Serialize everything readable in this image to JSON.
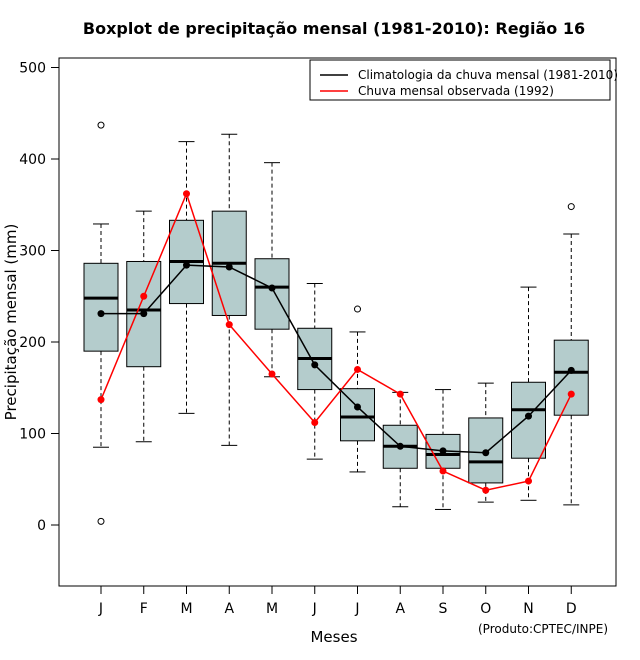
{
  "chart_data": {
    "type": "boxplot",
    "title": "Boxplot de precipitação mensal (1981-2010): Região 16",
    "xlabel": "Meses",
    "ylabel": "Precipitação mensal (mm)",
    "ylim": [
      -65,
      510
    ],
    "yticks": [
      0,
      100,
      200,
      300,
      400,
      500
    ],
    "categories": [
      "J",
      "F",
      "M",
      "A",
      "M",
      "J",
      "J",
      "A",
      "S",
      "O",
      "N",
      "D"
    ],
    "boxes": [
      {
        "min": 85,
        "q1": 190,
        "median": 248,
        "q3": 286,
        "max": 329,
        "outliers": [
          437,
          4
        ]
      },
      {
        "min": 91,
        "q1": 173,
        "median": 235,
        "q3": 288,
        "max": 343,
        "outliers": []
      },
      {
        "min": 122,
        "q1": 242,
        "median": 288,
        "q3": 333,
        "max": 419,
        "outliers": []
      },
      {
        "min": 87,
        "q1": 229,
        "median": 286,
        "q3": 343,
        "max": 427,
        "outliers": []
      },
      {
        "min": 162,
        "q1": 214,
        "median": 260,
        "q3": 291,
        "max": 396,
        "outliers": []
      },
      {
        "min": 72,
        "q1": 148,
        "median": 182,
        "q3": 215,
        "max": 264,
        "outliers": []
      },
      {
        "min": 58,
        "q1": 92,
        "median": 118,
        "q3": 149,
        "max": 211,
        "outliers": [
          236
        ]
      },
      {
        "min": 20,
        "q1": 62,
        "median": 86,
        "q3": 109,
        "max": 145,
        "outliers": []
      },
      {
        "min": 17,
        "q1": 62,
        "median": 77,
        "q3": 99,
        "max": 148,
        "outliers": []
      },
      {
        "min": 25,
        "q1": 46,
        "median": 69,
        "q3": 117,
        "max": 155,
        "outliers": []
      },
      {
        "min": 27,
        "q1": 73,
        "median": 126,
        "q3": 156,
        "max": 260,
        "outliers": []
      },
      {
        "min": 22,
        "q1": 120,
        "median": 167,
        "q3": 202,
        "max": 318,
        "outliers": [
          348
        ]
      }
    ],
    "series": [
      {
        "name": "Climatologia da chuva mensal (1981-2010)",
        "color": "#000000",
        "values": [
          231,
          231,
          284,
          282,
          259,
          175,
          129,
          86,
          81,
          79,
          119,
          169
        ]
      },
      {
        "name": "Chuva mensal observada (1992)",
        "color": "#ff0000",
        "values": [
          137,
          250,
          362,
          219,
          165,
          112,
          170,
          143,
          59,
          38,
          48,
          143
        ]
      }
    ],
    "legend_position": "top-right",
    "box_fill": "#b4cccc",
    "credit": "(Produto:CPTEC/INPE)"
  }
}
